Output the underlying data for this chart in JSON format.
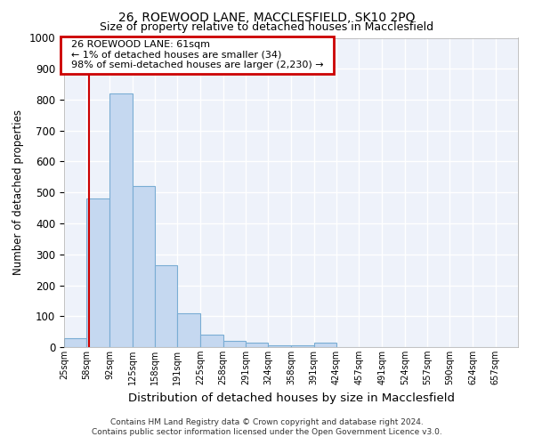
{
  "title_line1": "26, ROEWOOD LANE, MACCLESFIELD, SK10 2PQ",
  "title_line2": "Size of property relative to detached houses in Macclesfield",
  "xlabel": "Distribution of detached houses by size in Macclesfield",
  "ylabel": "Number of detached properties",
  "footnote1": "Contains HM Land Registry data © Crown copyright and database right 2024.",
  "footnote2": "Contains public sector information licensed under the Open Government Licence v3.0.",
  "annotation_line1": "26 ROEWOOD LANE: 61sqm",
  "annotation_line2": "← 1% of detached houses are smaller (34)",
  "annotation_line3": "98% of semi-detached houses are larger (2,230) →",
  "property_size": 61,
  "bar_color": "#c5d8f0",
  "bar_edge_color": "#7aadd4",
  "vline_color": "#cc0000",
  "annotation_box_color": "#cc0000",
  "background_color": "#eef2fa",
  "bins": [
    25,
    58,
    92,
    125,
    158,
    191,
    225,
    258,
    291,
    324,
    358,
    391,
    424,
    457,
    491,
    524,
    557,
    590,
    624,
    657,
    690
  ],
  "counts": [
    30,
    480,
    820,
    520,
    265,
    110,
    40,
    20,
    15,
    5,
    5,
    15,
    0,
    0,
    0,
    0,
    0,
    0,
    0,
    0
  ],
  "ylim": [
    0,
    1000
  ],
  "yticks": [
    0,
    100,
    200,
    300,
    400,
    500,
    600,
    700,
    800,
    900,
    1000
  ]
}
